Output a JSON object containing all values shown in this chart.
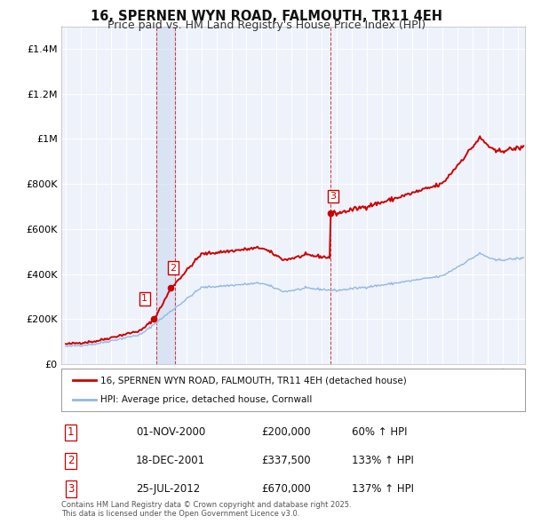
{
  "title": "16, SPERNEN WYN ROAD, FALMOUTH, TR11 4EH",
  "subtitle": "Price paid vs. HM Land Registry's House Price Index (HPI)",
  "xlim": [
    1994.7,
    2025.5
  ],
  "ylim": [
    0,
    1500000
  ],
  "yticks": [
    0,
    200000,
    400000,
    600000,
    800000,
    1000000,
    1200000,
    1400000
  ],
  "ytick_labels": [
    "£0",
    "£200K",
    "£400K",
    "£600K",
    "£800K",
    "£1M",
    "£1.2M",
    "£1.4M"
  ],
  "background_color": "#ffffff",
  "plot_background_color": "#eef2fb",
  "grid_color": "#ffffff",
  "hpi_color": "#93b8e0",
  "house_color": "#cc0000",
  "transactions": [
    {
      "date": 2000.833,
      "price": 200000,
      "label": "1"
    },
    {
      "date": 2001.958,
      "price": 337500,
      "label": "2"
    },
    {
      "date": 2012.556,
      "price": 670000,
      "label": "3"
    }
  ],
  "vspan_x0": 2001.0,
  "vspan_x1": 2002.25,
  "vline_dates": [
    2001.0,
    2002.25,
    2012.556
  ],
  "legend_house_label": "16, SPERNEN WYN ROAD, FALMOUTH, TR11 4EH (detached house)",
  "legend_hpi_label": "HPI: Average price, detached house, Cornwall",
  "table_rows": [
    {
      "num": "1",
      "date": "01-NOV-2000",
      "price": "£200,000",
      "pct": "60% ↑ HPI"
    },
    {
      "num": "2",
      "date": "18-DEC-2001",
      "price": "£337,500",
      "pct": "133% ↑ HPI"
    },
    {
      "num": "3",
      "date": "25-JUL-2012",
      "price": "£670,000",
      "pct": "137% ↑ HPI"
    }
  ],
  "footnote": "Contains HM Land Registry data © Crown copyright and database right 2025.\nThis data is licensed under the Open Government Licence v3.0.",
  "title_fontsize": 10.5,
  "subtitle_fontsize": 9
}
